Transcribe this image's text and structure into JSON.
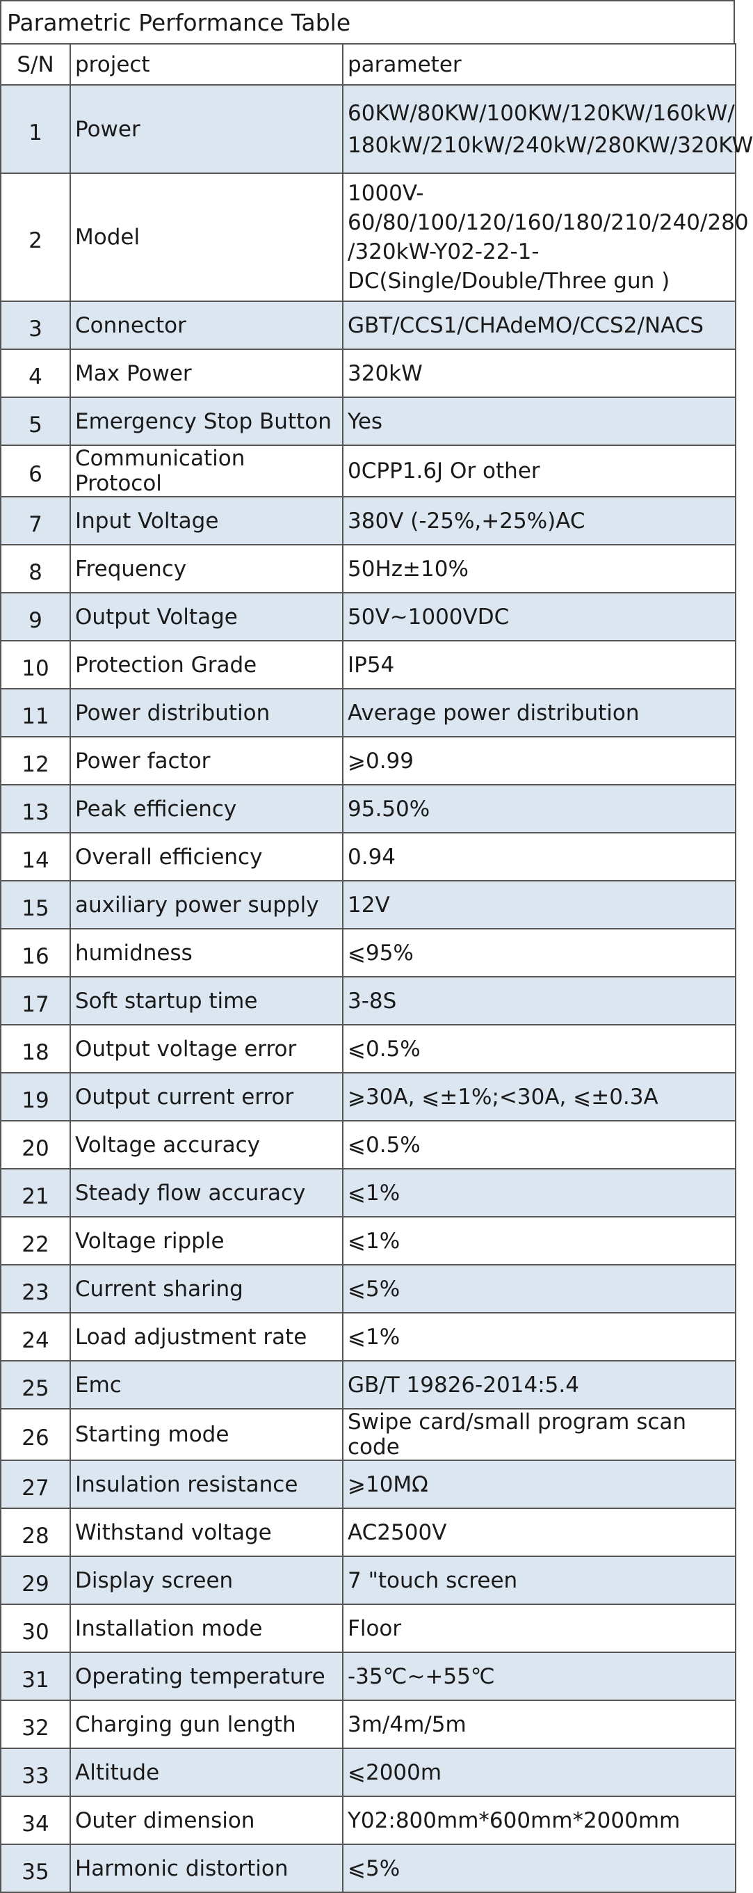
{
  "title": "Parametric Performance Table",
  "headers": {
    "sn": "S/N",
    "project": "project",
    "parameter": "parameter"
  },
  "rows": [
    {
      "sn": "1",
      "project": "Power",
      "parameter": "60KW/80KW/100KW/120KW/160kW/\n180kW/210kW/240kW/280KW/320KW"
    },
    {
      "sn": "2",
      "project": "Model",
      "parameter": "1000V-\n60/80/100/120/160/180/210/240/280\n/320kW-Y02-22-1-\nDC(Single/Double/Three gun )"
    },
    {
      "sn": "3",
      "project": "Connector",
      "parameter": "GBT/CCS1/CHAdeMO/CCS2/NACS"
    },
    {
      "sn": "4",
      "project": "Max Power",
      "parameter": "320kW"
    },
    {
      "sn": "5",
      "project": "Emergency Stop Button",
      "parameter": "Yes"
    },
    {
      "sn": "6",
      "project": "Communication Protocol",
      "parameter": "0CPP1.6J Or other"
    },
    {
      "sn": "7",
      "project": "Input Voltage",
      "parameter": "380V (-25%,+25%)AC"
    },
    {
      "sn": "8",
      "project": "Frequency",
      "parameter": "50Hz±10%"
    },
    {
      "sn": "9",
      "project": "Output Voltage",
      "parameter": "50V~1000VDC"
    },
    {
      "sn": "10",
      "project": "Protection Grade",
      "parameter": "IP54"
    },
    {
      "sn": "11",
      "project": "Power distribution",
      "parameter": "Average power distribution"
    },
    {
      "sn": "12",
      "project": "Power factor",
      "parameter": "⩾0.99"
    },
    {
      "sn": "13",
      "project": "Peak efficiency",
      "parameter": "95.50%"
    },
    {
      "sn": "14",
      "project": "Overall efficiency",
      "parameter": "0.94"
    },
    {
      "sn": "15",
      "project": "auxiliary power supply",
      "parameter": "12V"
    },
    {
      "sn": "16",
      "project": "humidness",
      "parameter": "⩽95%"
    },
    {
      "sn": "17",
      "project": "Soft startup time",
      "parameter": "3-8S"
    },
    {
      "sn": "18",
      "project": "Output voltage error",
      "parameter": "⩽0.5%"
    },
    {
      "sn": "19",
      "project": "Output current error",
      "parameter": "⩾30A, ⩽±1%;<30A, ⩽±0.3A"
    },
    {
      "sn": "20",
      "project": "Voltage accuracy",
      "parameter": "⩽0.5%"
    },
    {
      "sn": "21",
      "project": "Steady flow accuracy",
      "parameter": "⩽1%"
    },
    {
      "sn": "22",
      "project": "Voltage ripple",
      "parameter": "⩽1%"
    },
    {
      "sn": "23",
      "project": "Current sharing",
      "parameter": "⩽5%"
    },
    {
      "sn": "24",
      "project": "Load adjustment rate",
      "parameter": "⩽1%"
    },
    {
      "sn": "25",
      "project": "Emc",
      "parameter": "GB/T 19826-2014:5.4"
    },
    {
      "sn": "26",
      "project": "Starting mode",
      "parameter": "Swipe card/small program scan code"
    },
    {
      "sn": "27",
      "project": "Insulation resistance",
      "parameter": "⩾10MΩ"
    },
    {
      "sn": "28",
      "project": "Withstand voltage",
      "parameter": "AC2500V"
    },
    {
      "sn": "29",
      "project": "Display screen",
      "parameter": "7 \"touch screen"
    },
    {
      "sn": "30",
      "project": "Installation mode",
      "parameter": "Floor"
    },
    {
      "sn": "31",
      "project": "Operating temperature",
      "parameter": "-35℃~+55℃"
    },
    {
      "sn": "32",
      "project": "Charging gun length",
      "parameter": "3m/4m/5m"
    },
    {
      "sn": "33",
      "project": "Altitude",
      "parameter": "⩽2000m"
    },
    {
      "sn": "34",
      "project": "Outer dimension",
      "parameter": "Y02:800mm*600mm*2000mm"
    },
    {
      "sn": "35",
      "project": "Harmonic distortion",
      "parameter": "⩽5%"
    }
  ],
  "colors": {
    "highlight": "#dce6f1",
    "plain": "#ffffff",
    "border": "#555555"
  }
}
